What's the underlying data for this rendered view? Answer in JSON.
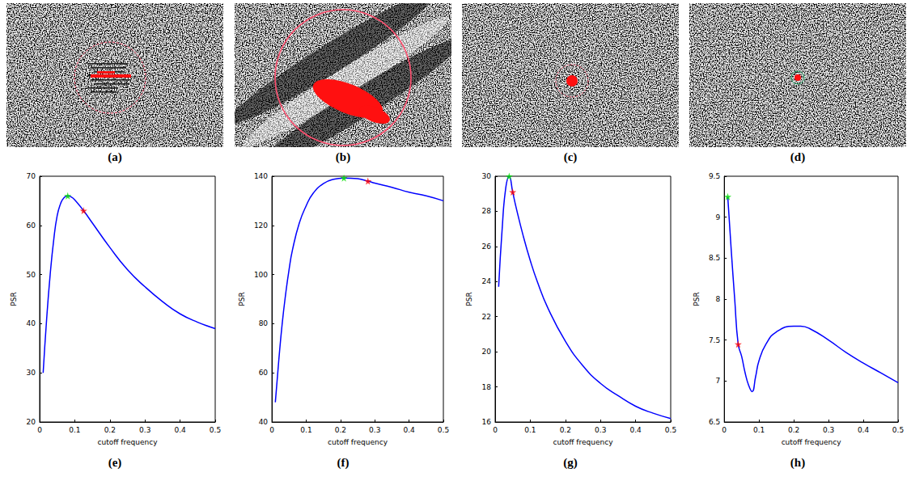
{
  "images": [
    {
      "label": "(a)"
    },
    {
      "label": "(b)"
    },
    {
      "label": "(c)"
    },
    {
      "label": "(d)"
    }
  ],
  "chart_data": [
    {
      "type": "line",
      "label": "(e)",
      "x_label": "cutoff frequency",
      "y_label": "PSR",
      "xlim": [
        0,
        0.5
      ],
      "xticks": [
        0,
        0.1,
        0.2,
        0.3,
        0.4,
        0.5
      ],
      "ylim": [
        20,
        70
      ],
      "yticks": [
        20,
        30,
        40,
        50,
        60,
        70
      ],
      "grid": false,
      "series": [
        {
          "type": "line",
          "color": "#0000ff",
          "x": [
            0.01,
            0.02,
            0.03,
            0.04,
            0.05,
            0.06,
            0.07,
            0.08,
            0.09,
            0.1,
            0.125,
            0.15,
            0.2,
            0.25,
            0.3,
            0.35,
            0.4,
            0.45,
            0.5
          ],
          "values": [
            30,
            41,
            50,
            57,
            62,
            64.5,
            65.7,
            66,
            65.8,
            65.2,
            63,
            60.5,
            55.5,
            51,
            47.5,
            44.5,
            42,
            40.3,
            39
          ]
        },
        {
          "type": "scatter",
          "color": "#00dd00",
          "marker": "star",
          "x": [
            0.08
          ],
          "values": [
            66
          ]
        },
        {
          "type": "scatter",
          "color": "#ff0000",
          "marker": "star",
          "x": [
            0.125
          ],
          "values": [
            63
          ]
        }
      ]
    },
    {
      "type": "line",
      "label": "(f)",
      "x_label": "cutoff frequency",
      "y_label": "PSR",
      "xlim": [
        0,
        0.5
      ],
      "xticks": [
        0,
        0.1,
        0.2,
        0.3,
        0.4,
        0.5
      ],
      "ylim": [
        40,
        140
      ],
      "yticks": [
        40,
        60,
        80,
        100,
        120,
        140
      ],
      "grid": false,
      "series": [
        {
          "type": "line",
          "color": "#0000ff",
          "x": [
            0.01,
            0.02,
            0.03,
            0.04,
            0.05,
            0.06,
            0.08,
            0.1,
            0.12,
            0.15,
            0.18,
            0.21,
            0.25,
            0.28,
            0.3,
            0.35,
            0.4,
            0.45,
            0.5
          ],
          "values": [
            48,
            65,
            80,
            92,
            102,
            110,
            121,
            128,
            133,
            137,
            138.8,
            139.3,
            139,
            138,
            137.2,
            135.5,
            133.5,
            132,
            130
          ]
        },
        {
          "type": "scatter",
          "color": "#00dd00",
          "marker": "star",
          "x": [
            0.21
          ],
          "values": [
            139.3
          ]
        },
        {
          "type": "scatter",
          "color": "#ff0000",
          "marker": "star",
          "x": [
            0.28
          ],
          "values": [
            138
          ]
        }
      ]
    },
    {
      "type": "line",
      "label": "(g)",
      "x_label": "cutoff frequency",
      "y_label": "PSR",
      "xlim": [
        0,
        0.5
      ],
      "xticks": [
        0,
        0.1,
        0.2,
        0.3,
        0.4,
        0.5
      ],
      "ylim": [
        16,
        30
      ],
      "yticks": [
        16,
        18,
        20,
        22,
        24,
        26,
        28,
        30
      ],
      "grid": false,
      "series": [
        {
          "type": "line",
          "color": "#0000ff",
          "x": [
            0.01,
            0.02,
            0.03,
            0.04,
            0.05,
            0.06,
            0.08,
            0.1,
            0.12,
            0.15,
            0.2,
            0.25,
            0.3,
            0.35,
            0.4,
            0.45,
            0.5
          ],
          "values": [
            23.7,
            27,
            29.3,
            30,
            29.1,
            28.2,
            26.6,
            25.2,
            24,
            22.5,
            20.6,
            19.2,
            18.2,
            17.5,
            16.9,
            16.5,
            16.2
          ]
        },
        {
          "type": "scatter",
          "color": "#00dd00",
          "marker": "star",
          "x": [
            0.04
          ],
          "values": [
            30
          ]
        },
        {
          "type": "scatter",
          "color": "#ff0000",
          "marker": "star",
          "x": [
            0.05
          ],
          "values": [
            29.1
          ]
        }
      ]
    },
    {
      "type": "line",
      "label": "(h)",
      "x_label": "cutoff frequency",
      "y_label": "PSR",
      "xlim": [
        0,
        0.5
      ],
      "xticks": [
        0,
        0.1,
        0.2,
        0.3,
        0.4,
        0.5
      ],
      "ylim": [
        6.5,
        9.5
      ],
      "yticks": [
        6.5,
        7,
        7.5,
        8,
        8.5,
        9,
        9.5
      ],
      "grid": false,
      "series": [
        {
          "type": "line",
          "color": "#0000ff",
          "x": [
            0.01,
            0.02,
            0.03,
            0.04,
            0.05,
            0.06,
            0.07,
            0.08,
            0.09,
            0.1,
            0.12,
            0.15,
            0.2,
            0.22,
            0.25,
            0.3,
            0.35,
            0.4,
            0.45,
            0.5
          ],
          "values": [
            9.25,
            8.6,
            8.0,
            7.45,
            7.3,
            7.1,
            6.95,
            6.87,
            7.05,
            7.25,
            7.45,
            7.6,
            7.67,
            7.67,
            7.63,
            7.5,
            7.35,
            7.22,
            7.1,
            6.98
          ]
        },
        {
          "type": "scatter",
          "color": "#00dd00",
          "marker": "star",
          "x": [
            0.01
          ],
          "values": [
            9.25
          ]
        },
        {
          "type": "scatter",
          "color": "#ff0000",
          "marker": "star",
          "x": [
            0.04
          ],
          "values": [
            7.45
          ]
        }
      ]
    }
  ]
}
